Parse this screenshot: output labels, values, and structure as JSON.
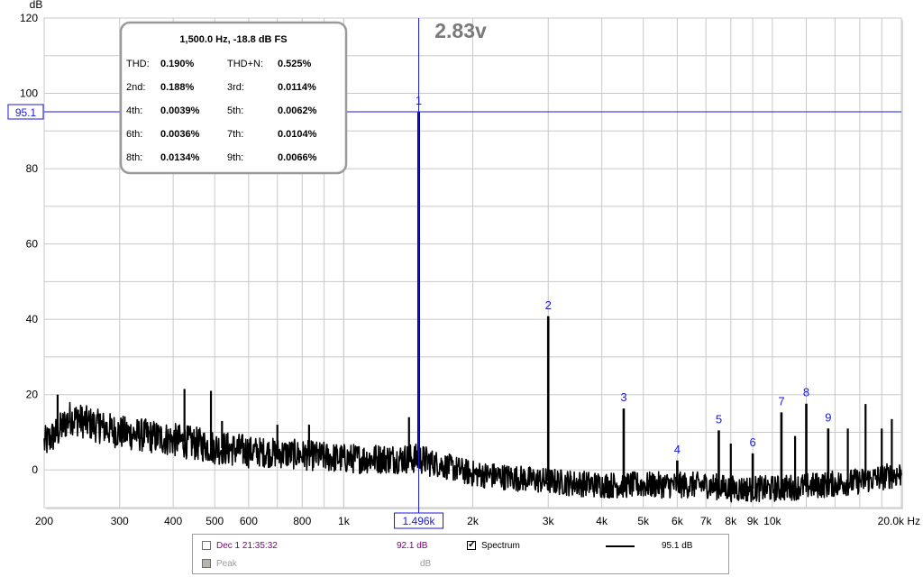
{
  "chart_data": {
    "type": "line",
    "title": "",
    "xlabel": "Hz",
    "ylabel": "dB",
    "x_scale": "log",
    "xlim": [
      200,
      20000
    ],
    "ylim": [
      -10,
      120
    ],
    "x_ticks": [
      200,
      300,
      400,
      500,
      600,
      800,
      1000,
      2000,
      3000,
      4000,
      5000,
      6000,
      7000,
      8000,
      9000,
      10000,
      20000
    ],
    "x_tick_labels": [
      "200",
      "300",
      "400",
      "500",
      "600",
      "800",
      "1k",
      "2k",
      "3k",
      "4k",
      "5k",
      "6k",
      "7k",
      "8k",
      "9k",
      "10k",
      "20.0k Hz"
    ],
    "y_ticks": [
      0,
      20,
      40,
      60,
      80,
      100,
      120
    ],
    "y_tick_labels": [
      "0",
      "20",
      "40",
      "60",
      "80",
      "100",
      "120"
    ],
    "grid": true,
    "series": [
      {
        "name": "Spectrum",
        "color": "#000000",
        "noise_floor": [
          [
            200,
            7
          ],
          [
            215,
            10
          ],
          [
            230,
            14
          ],
          [
            260,
            12
          ],
          [
            300,
            10
          ],
          [
            350,
            9
          ],
          [
            400,
            8
          ],
          [
            450,
            7
          ],
          [
            500,
            6
          ],
          [
            600,
            5
          ],
          [
            800,
            4
          ],
          [
            1000,
            3
          ],
          [
            1300,
            3
          ],
          [
            1496,
            3
          ],
          [
            2000,
            -1
          ],
          [
            3000,
            -3
          ],
          [
            4000,
            -4
          ],
          [
            5000,
            -4
          ],
          [
            6000,
            -4
          ],
          [
            7000,
            -4
          ],
          [
            8000,
            -5
          ],
          [
            9000,
            -5
          ],
          [
            10000,
            -5
          ],
          [
            13000,
            -4
          ],
          [
            16000,
            -3
          ],
          [
            20000,
            -1
          ]
        ],
        "peaks": [
          {
            "x": 1496,
            "y": 95.1,
            "label": "1"
          },
          {
            "x": 3000,
            "y": 40.8,
            "label": "2"
          },
          {
            "x": 4500,
            "y": 16.3,
            "label": "3"
          },
          {
            "x": 6000,
            "y": 2.5,
            "label": "4"
          },
          {
            "x": 7500,
            "y": 10.5,
            "label": "5"
          },
          {
            "x": 9000,
            "y": 4.4,
            "label": "6"
          },
          {
            "x": 10500,
            "y": 15.3,
            "label": "7"
          },
          {
            "x": 12000,
            "y": 17.6,
            "label": "8"
          },
          {
            "x": 13500,
            "y": 11.0,
            "label": "9"
          }
        ],
        "spurs": [
          {
            "x": 215,
            "y": 20
          },
          {
            "x": 240,
            "y": 16
          },
          {
            "x": 270,
            "y": 15
          },
          {
            "x": 425,
            "y": 21.5
          },
          {
            "x": 490,
            "y": 21
          },
          {
            "x": 520,
            "y": 13
          },
          {
            "x": 700,
            "y": 12
          },
          {
            "x": 830,
            "y": 12
          },
          {
            "x": 1420,
            "y": 14
          },
          {
            "x": 8000,
            "y": 7
          },
          {
            "x": 11300,
            "y": 9
          },
          {
            "x": 15000,
            "y": 11
          },
          {
            "x": 16500,
            "y": 17.5
          },
          {
            "x": 18000,
            "y": 11
          },
          {
            "x": 19000,
            "y": 13.5
          }
        ]
      }
    ],
    "cursor": {
      "x": 1496,
      "y": 95.1,
      "x_label": "1.496k",
      "y_label": "95.1"
    },
    "annotation_level": "2.83v",
    "readout": {
      "header": "1,500.0 Hz, -18.8 dB FS",
      "rows": [
        [
          {
            "label": "THD:",
            "value": "0.190%"
          },
          {
            "label": "THD+N:",
            "value": "0.525%"
          }
        ],
        [
          {
            "label": "2nd:",
            "value": "0.188%"
          },
          {
            "label": "3rd:",
            "value": "0.0114%"
          }
        ],
        [
          {
            "label": "4th:",
            "value": "0.0039%"
          },
          {
            "label": "5th:",
            "value": "0.0062%"
          }
        ],
        [
          {
            "label": "6th:",
            "value": "0.0036%"
          },
          {
            "label": "7th:",
            "value": "0.0104%"
          }
        ],
        [
          {
            "label": "8th:",
            "value": "0.0134%"
          },
          {
            "label": "9th:",
            "value": "0.0066%"
          }
        ]
      ]
    }
  },
  "legend": {
    "row1": {
      "measurement": "Dec 1 21:35:32",
      "level": "92.1 dB",
      "spectrum_label": "Spectrum",
      "spectrum_value": "95.1 dB"
    },
    "row2": {
      "peak_label": "Peak",
      "unit": "dB"
    }
  },
  "colors": {
    "grid": "#c8c8c8",
    "cursor": "#1a1adc",
    "trace": "#000000",
    "measurement": "#800080",
    "annotation": "#7a7a7a"
  }
}
